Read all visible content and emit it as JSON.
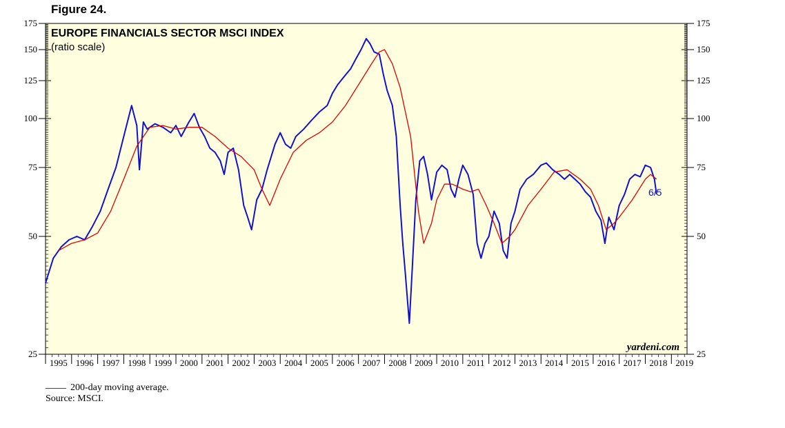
{
  "figure_label": "Figure 24.",
  "chart_data": {
    "type": "line",
    "title": "EUROPE FINANCIALS SECTOR MSCI INDEX",
    "subtitle": "(ratio scale)",
    "yscale": "log",
    "ylim": [
      25,
      175
    ],
    "xlim": [
      1995,
      2019.6
    ],
    "y_ticks": [
      25,
      50,
      75,
      100,
      125,
      150,
      175
    ],
    "x_tick_labels": [
      "1995",
      "1996",
      "1997",
      "1998",
      "1999",
      "2000",
      "2001",
      "2002",
      "2003",
      "2004",
      "2005",
      "2006",
      "2007",
      "2008",
      "2009",
      "2010",
      "2011",
      "2012",
      "2013",
      "2014",
      "2015",
      "2016",
      "2017",
      "2018",
      "2019"
    ],
    "grid": false,
    "background": "#ffffe0",
    "legend_position": "bottom-left",
    "end_annotation": "6/5",
    "watermark": "yardeni.com",
    "series": [
      {
        "name": "",
        "color": "#1010d0",
        "x": [
          1995.0,
          1995.3,
          1995.6,
          1995.9,
          1996.2,
          1996.5,
          1996.8,
          1997.1,
          1997.4,
          1997.7,
          1998.0,
          1998.3,
          1998.5,
          1998.6,
          1998.75,
          1998.9,
          1999.2,
          1999.5,
          1999.8,
          2000.0,
          2000.2,
          2000.5,
          2000.7,
          2000.9,
          2001.1,
          2001.3,
          2001.5,
          2001.7,
          2001.85,
          2002.0,
          2002.2,
          2002.4,
          2002.6,
          2002.75,
          2002.9,
          2003.1,
          2003.3,
          2003.5,
          2003.8,
          2004.0,
          2004.2,
          2004.4,
          2004.6,
          2004.9,
          2005.2,
          2005.5,
          2005.8,
          2006.0,
          2006.2,
          2006.45,
          2006.7,
          2006.9,
          2007.1,
          2007.3,
          2007.45,
          2007.6,
          2007.8,
          2007.95,
          2008.1,
          2008.3,
          2008.45,
          2008.6,
          2008.7,
          2008.8,
          2008.95,
          2009.05,
          2009.2,
          2009.35,
          2009.5,
          2009.65,
          2009.8,
          2010.0,
          2010.2,
          2010.4,
          2010.55,
          2010.7,
          2010.85,
          2011.0,
          2011.2,
          2011.4,
          2011.55,
          2011.7,
          2011.85,
          2012.0,
          2012.2,
          2012.4,
          2012.55,
          2012.7,
          2012.85,
          2013.0,
          2013.2,
          2013.45,
          2013.7,
          2014.0,
          2014.2,
          2014.45,
          2014.7,
          2014.9,
          2015.1,
          2015.3,
          2015.5,
          2015.7,
          2015.9,
          2016.1,
          2016.3,
          2016.45,
          2016.6,
          2016.8,
          2017.0,
          2017.2,
          2017.4,
          2017.6,
          2017.8,
          2018.0,
          2018.2,
          2018.35,
          2018.43
        ],
        "y": [
          38,
          44,
          47,
          49,
          50,
          49,
          53,
          58,
          66,
          75,
          90,
          108,
          96,
          74,
          98,
          94,
          97,
          95,
          92,
          96,
          90,
          98,
          103,
          95,
          90,
          84,
          82,
          78,
          72,
          82,
          84,
          74,
          60,
          56,
          52,
          62,
          66,
          74,
          86,
          92,
          86,
          84,
          90,
          94,
          99,
          104,
          108,
          116,
          122,
          128,
          134,
          142,
          150,
          160,
          155,
          148,
          146,
          130,
          118,
          108,
          90,
          60,
          48,
          40,
          30,
          40,
          62,
          78,
          80,
          72,
          62,
          73,
          76,
          74,
          66,
          63,
          70,
          76,
          72,
          64,
          48,
          44,
          48,
          50,
          58,
          54,
          46,
          44,
          54,
          58,
          66,
          70,
          72,
          76,
          77,
          74,
          72,
          70,
          72,
          70,
          68,
          65,
          63,
          58,
          55,
          48,
          56,
          52,
          60,
          64,
          70,
          72,
          71,
          76,
          75,
          70,
          64
        ]
      },
      {
        "name": "200-day moving average.",
        "color": "#e00000",
        "x": [
          1995.5,
          1996.0,
          1996.5,
          1997.0,
          1997.5,
          1998.0,
          1998.5,
          1999.0,
          1999.5,
          2000.0,
          2000.5,
          2001.0,
          2001.5,
          2002.0,
          2002.5,
          2003.0,
          2003.3,
          2003.6,
          2004.0,
          2004.5,
          2005.0,
          2005.5,
          2006.0,
          2006.5,
          2007.0,
          2007.5,
          2007.8,
          2008.0,
          2008.3,
          2008.6,
          2009.0,
          2009.3,
          2009.5,
          2009.8,
          2010.0,
          2010.3,
          2010.6,
          2011.0,
          2011.3,
          2011.6,
          2011.9,
          2012.2,
          2012.5,
          2012.8,
          2013.0,
          2013.5,
          2014.0,
          2014.5,
          2015.0,
          2015.5,
          2015.9,
          2016.2,
          2016.5,
          2016.8,
          2017.0,
          2017.5,
          2018.0,
          2018.2,
          2018.43
        ],
        "y": [
          46,
          48,
          49,
          51,
          58,
          70,
          85,
          95,
          96,
          94,
          95,
          95,
          90,
          84,
          80,
          74,
          66,
          60,
          70,
          82,
          88,
          92,
          98,
          108,
          122,
          138,
          148,
          150,
          138,
          120,
          90,
          58,
          48,
          54,
          62,
          68,
          68,
          66,
          65,
          66,
          60,
          54,
          48,
          50,
          52,
          60,
          66,
          73,
          74,
          70,
          66,
          60,
          52,
          54,
          56,
          62,
          70,
          72,
          70
        ]
      }
    ]
  }
}
